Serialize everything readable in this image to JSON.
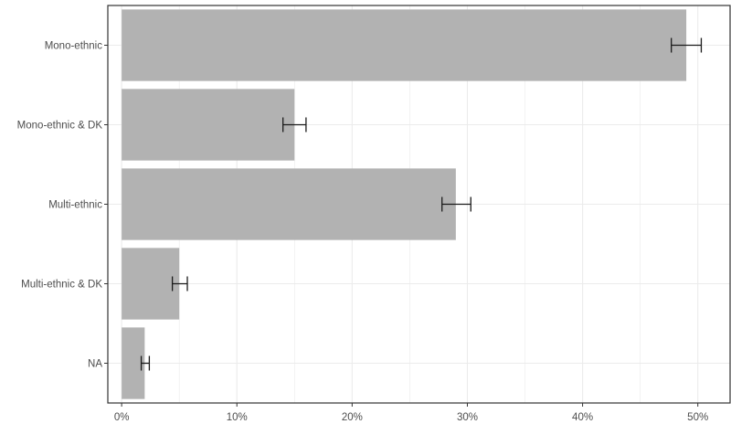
{
  "chart_data": {
    "type": "bar",
    "orientation": "horizontal",
    "categories": [
      "Mono-ethnic",
      "Mono-ethnic & DK",
      "Multi-ethnic",
      "Multi-ethnic & DK",
      "NA"
    ],
    "values": [
      49.0,
      15.0,
      29.0,
      5.0,
      2.0
    ],
    "error_low": [
      47.7,
      14.0,
      27.8,
      4.4,
      1.7
    ],
    "error_high": [
      50.3,
      16.0,
      30.3,
      5.7,
      2.4
    ],
    "xlim": [
      -1.2,
      52.8
    ],
    "x_ticks": [
      0,
      10,
      20,
      30,
      40,
      50
    ],
    "x_tick_labels": [
      "0%",
      "10%",
      "20%",
      "30%",
      "40%",
      "50%"
    ],
    "bar_color": "#b2b2b2",
    "error_bar_color": "#1a1a1a",
    "grid": true,
    "grid_color": "#ebebeb",
    "panel_border_color": "#333333",
    "title": "",
    "xlabel": "",
    "ylabel": ""
  }
}
